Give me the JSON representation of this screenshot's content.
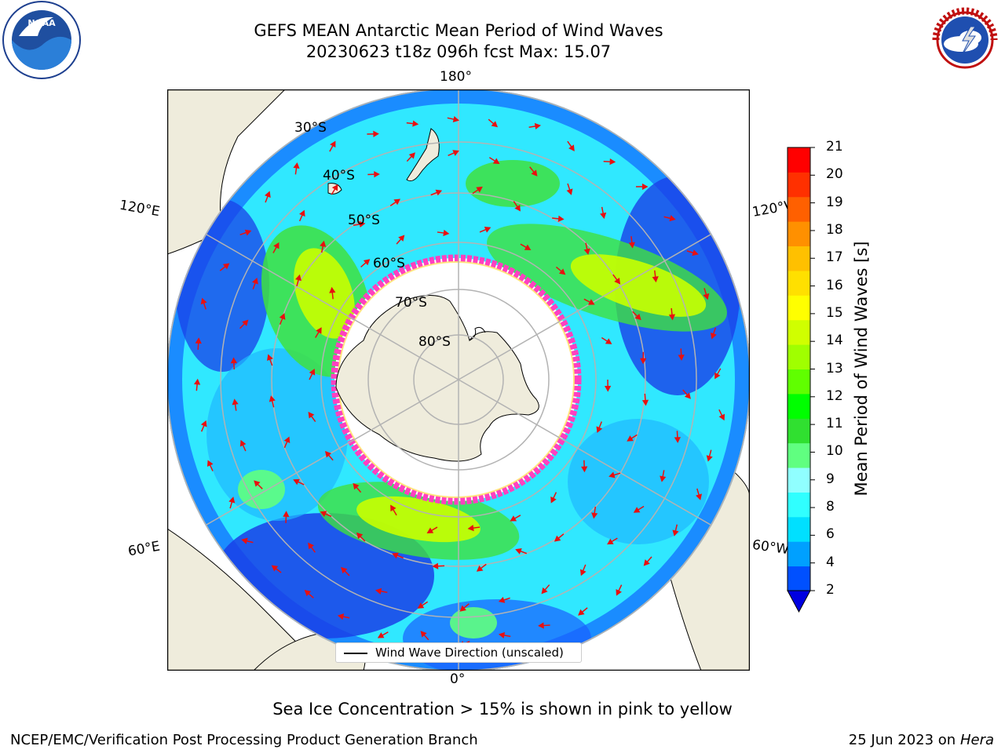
{
  "header": {
    "title_line1": "GEFS MEAN Antarctic Mean Period of Wind Waves",
    "title_line2": "20230623 t18z 096h fcst   Max: 15.07"
  },
  "logos": {
    "left": "noaa-logo",
    "right": "nws-logo"
  },
  "map": {
    "projection": "south-polar-stereographic",
    "lon_labels": {
      "top": "180°",
      "bottom": "0°",
      "upper_left": "120°E",
      "upper_right": "120°W",
      "lower_left": "60°E",
      "lower_right": "60°W"
    },
    "lat_labels": [
      "30°S",
      "40°S",
      "50°S",
      "60°S",
      "70°S",
      "80°S"
    ],
    "land_color": "#efecdc",
    "arrow_color": "#e81010",
    "legend_label": "Wind Wave Direction (unscaled)"
  },
  "colorbar": {
    "label": "Mean Period of Wind Waves [s]",
    "ticks": [
      "21",
      "20",
      "19",
      "18",
      "17",
      "16",
      "15",
      "14",
      "13",
      "12",
      "11",
      "10",
      "9",
      "8",
      "6",
      "4",
      "2"
    ],
    "colors_bottom_to_top": [
      "#0050ff",
      "#00a0ff",
      "#00e0ff",
      "#30ffff",
      "#90ffff",
      "#60ff80",
      "#30e030",
      "#00ff00",
      "#60ff00",
      "#a0ff00",
      "#d0ff00",
      "#ffff00",
      "#ffe000",
      "#ffc000",
      "#ff9000",
      "#ff6000",
      "#ff3000",
      "#ff0000"
    ],
    "under_color": "#0000e0"
  },
  "footer": {
    "note": "Sea Ice Concentration > 15% is shown in pink to yellow",
    "credit": "NCEP/EMC/Verification Post Processing Product Generation Branch",
    "date": "25 Jun 2023 on",
    "machine": "Hera"
  }
}
